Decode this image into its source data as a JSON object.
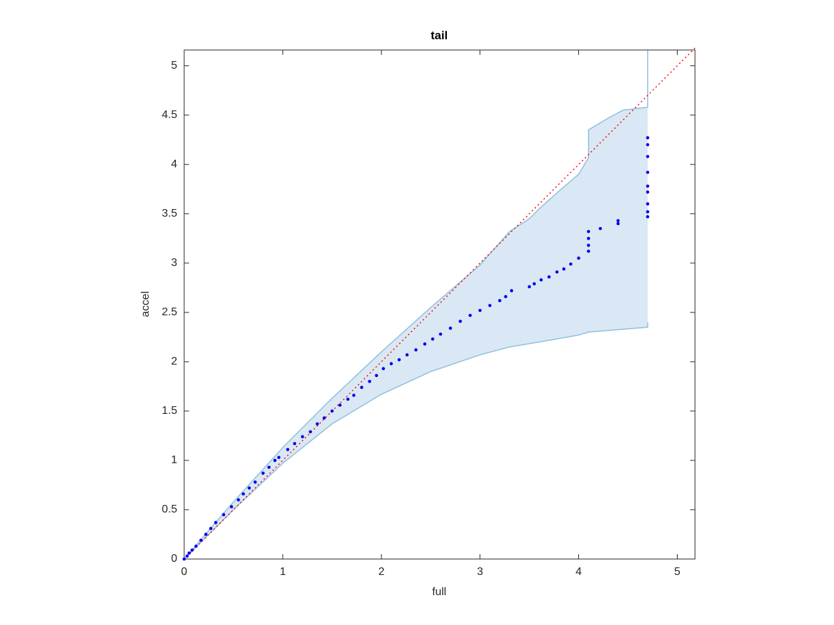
{
  "chart_data": {
    "type": "scatter",
    "title": "tail",
    "xlabel": "full",
    "ylabel": "accel",
    "xlim": [
      0,
      5.18
    ],
    "ylim": [
      0,
      5.16
    ],
    "xticks": [
      0,
      1,
      2,
      3,
      4,
      5
    ],
    "yticks": [
      0,
      0.5,
      1,
      1.5,
      2,
      2.5,
      3,
      3.5,
      4,
      4.5,
      5
    ],
    "band": {
      "color": "#d9e8f4",
      "edge_color": "#8ec0e0",
      "upper": {
        "x": [
          0,
          0.5,
          1,
          1.5,
          2,
          2.5,
          3,
          3.3,
          3.5,
          3.6,
          3.8,
          4,
          4.1,
          4.1,
          4.3,
          4.45,
          4.7,
          4.7
        ],
        "y": [
          0,
          0.58,
          1.13,
          1.63,
          2.1,
          2.55,
          2.98,
          3.32,
          3.45,
          3.55,
          3.73,
          3.9,
          4.07,
          4.35,
          4.47,
          4.55,
          4.58,
          5.16
        ]
      },
      "lower": {
        "x": [
          0,
          0.5,
          1,
          1.5,
          2,
          2.5,
          3,
          3.3,
          3.6,
          4,
          4.1,
          4.7,
          4.7
        ],
        "y": [
          0,
          0.5,
          0.97,
          1.37,
          1.67,
          1.9,
          2.07,
          2.15,
          2.2,
          2.27,
          2.3,
          2.35,
          2.4
        ]
      }
    },
    "reference": {
      "color": "#ff0000",
      "style": "dotted",
      "x": [
        0,
        5.18
      ],
      "y": [
        0,
        5.18
      ]
    },
    "series": [
      {
        "color": "#0000ee",
        "x": [
          0,
          0.03,
          0.05,
          0.08,
          0.12,
          0.17,
          0.22,
          0.27,
          0.32,
          0.4,
          0.48,
          0.55,
          0.6,
          0.66,
          0.72,
          0.8,
          0.86,
          0.92,
          0.96,
          1.05,
          1.12,
          1.2,
          1.28,
          1.35,
          1.42,
          1.5,
          1.58,
          1.66,
          1.72,
          1.8,
          1.88,
          1.95,
          2.02,
          2.1,
          2.18,
          2.26,
          2.35,
          2.44,
          2.52,
          2.6,
          2.7,
          2.8,
          2.9,
          3.0,
          3.1,
          3.2,
          3.26,
          3.32,
          3.5,
          3.55,
          3.62,
          3.7,
          3.78,
          3.85,
          3.92,
          4.0,
          4.1,
          4.1,
          4.1,
          4.1,
          4.22,
          4.4,
          4.4,
          4.7,
          4.7,
          4.7,
          4.7,
          4.7,
          4.7,
          4.7,
          4.7,
          4.7
        ],
        "y": [
          0,
          0.03,
          0.06,
          0.09,
          0.13,
          0.19,
          0.25,
          0.31,
          0.37,
          0.45,
          0.53,
          0.6,
          0.66,
          0.72,
          0.78,
          0.87,
          0.93,
          1.0,
          1.03,
          1.11,
          1.17,
          1.24,
          1.29,
          1.37,
          1.43,
          1.5,
          1.56,
          1.62,
          1.66,
          1.74,
          1.8,
          1.86,
          1.93,
          1.98,
          2.02,
          2.07,
          2.12,
          2.18,
          2.23,
          2.28,
          2.34,
          2.41,
          2.47,
          2.52,
          2.57,
          2.62,
          2.66,
          2.72,
          2.76,
          2.79,
          2.83,
          2.86,
          2.91,
          2.94,
          2.99,
          3.05,
          3.12,
          3.18,
          3.25,
          3.32,
          3.35,
          3.4,
          3.43,
          3.47,
          3.52,
          3.6,
          3.72,
          3.78,
          3.92,
          4.08,
          4.2,
          4.27
        ]
      }
    ]
  }
}
